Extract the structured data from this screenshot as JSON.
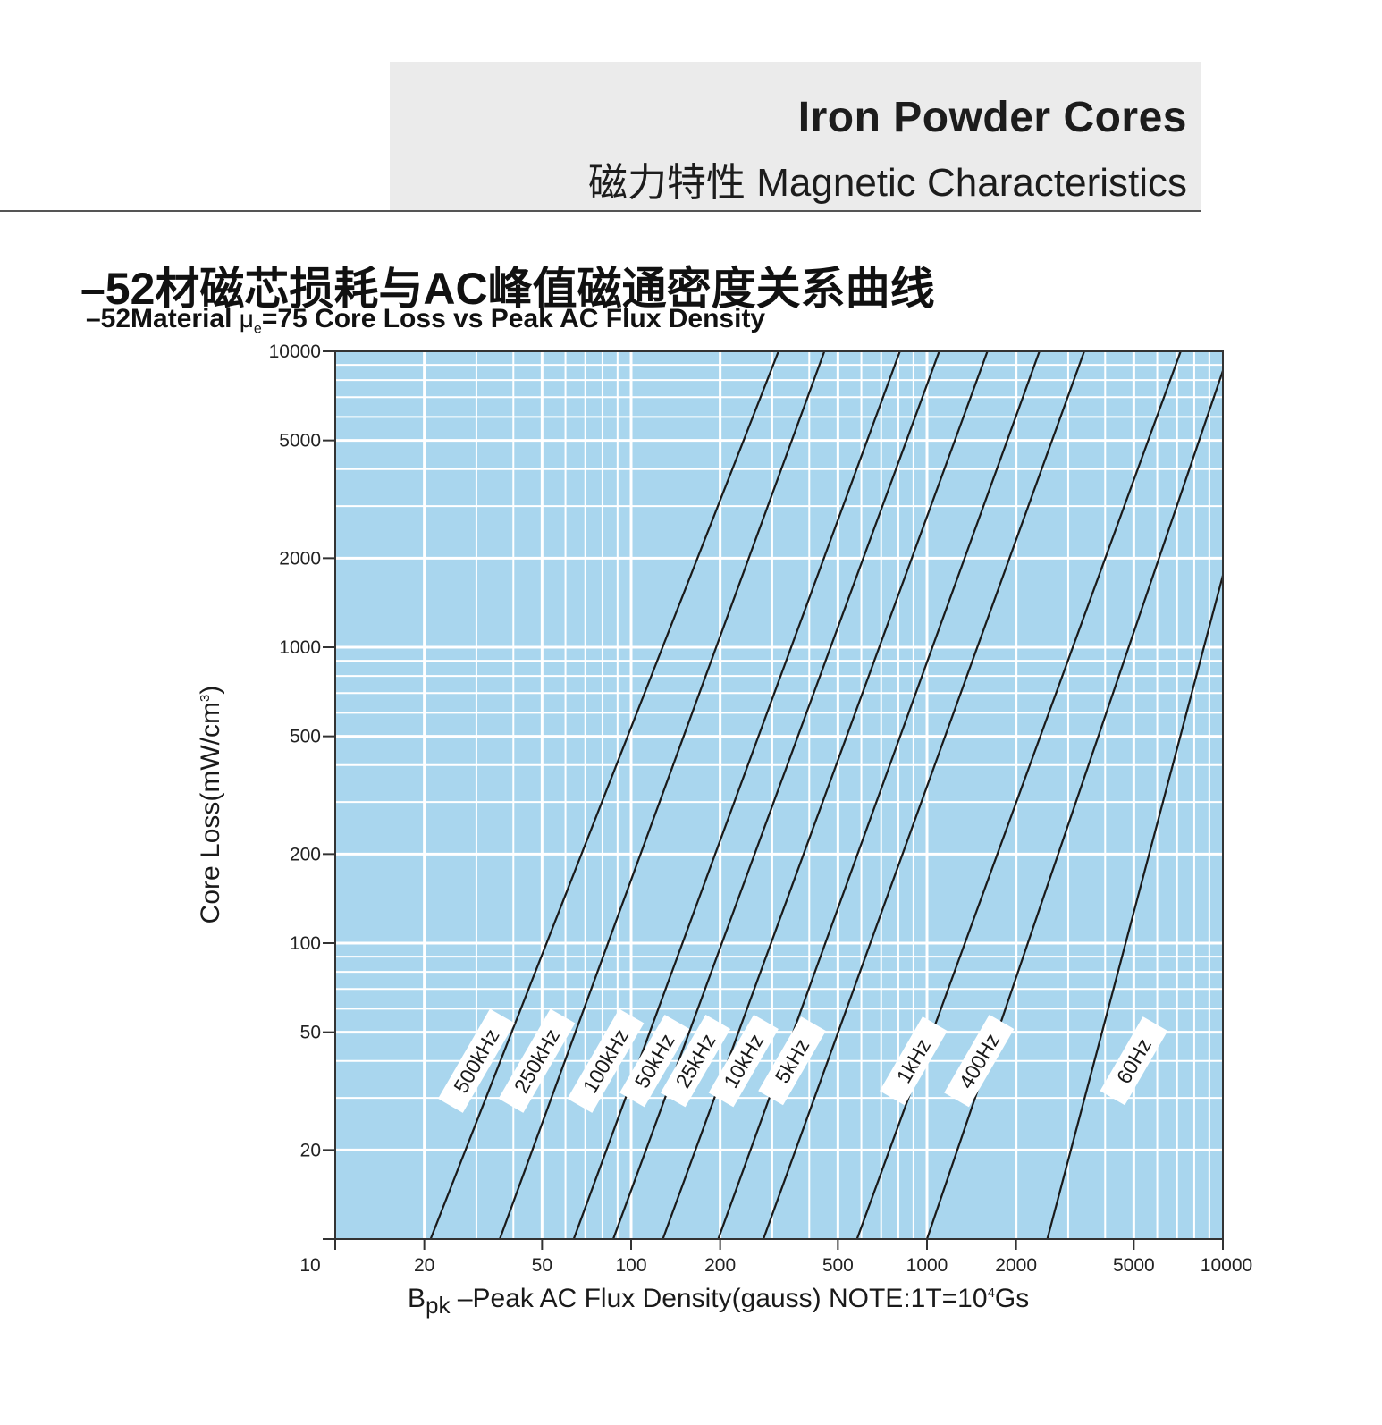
{
  "header": {
    "brand_title": "Iron Powder Cores",
    "brand_subtitle": "磁力特性 Magnetic Characteristics"
  },
  "chart_data": {
    "type": "line",
    "title_cn": "–52材磁芯损耗与AC峰值磁通密度关系曲线",
    "title_en_prefix": "–52Material",
    "title_en_mu": "μ",
    "title_en_mu_sub": "e",
    "title_en_suffix": "=75 Core Loss vs Peak AC Flux Density",
    "x_scale": "log",
    "y_scale": "log",
    "xlim": [
      10,
      10000
    ],
    "ylim": [
      10,
      10000
    ],
    "x_ticks": [
      "10",
      "20",
      "50",
      "100",
      "200",
      "500",
      "1000",
      "2000",
      "5000",
      "10000"
    ],
    "y_ticks": [
      "10000",
      "5000",
      "2000",
      "1000",
      "500",
      "200",
      "100",
      "50",
      "20"
    ],
    "xlabel": {
      "b": "B",
      "sub": "pk",
      "text": " –Peak AC Flux Density(gauss)  NOTE:1T=10",
      "sup": "4",
      "end": "Gs"
    },
    "ylabel": {
      "text": "Core Loss(mW/cm",
      "sup": "3",
      "end": ")"
    },
    "grid": true,
    "background_color": "#a9d6ee",
    "grid_color": "#ffffff",
    "line_color": "#1a1a1a",
    "series": [
      {
        "name": "500kHz",
        "points": [
          [
            21,
            10
          ],
          [
            315,
            10000
          ]
        ]
      },
      {
        "name": "250kHz",
        "points": [
          [
            36,
            10
          ],
          [
            450,
            10000
          ]
        ]
      },
      {
        "name": "100kHz",
        "points": [
          [
            64,
            10
          ],
          [
            810,
            10000
          ]
        ]
      },
      {
        "name": "50kHz",
        "points": [
          [
            87,
            10
          ],
          [
            1100,
            10000
          ]
        ]
      },
      {
        "name": "25kHz",
        "points": [
          [
            128,
            10
          ],
          [
            1600,
            10000
          ]
        ]
      },
      {
        "name": "10kHz",
        "points": [
          [
            197,
            10
          ],
          [
            2400,
            10000
          ]
        ]
      },
      {
        "name": "5kHz",
        "points": [
          [
            280,
            10
          ],
          [
            3400,
            10000
          ]
        ]
      },
      {
        "name": "1kHz",
        "points": [
          [
            580,
            10
          ],
          [
            7200,
            10000
          ]
        ]
      },
      {
        "name": "400Hz",
        "points": [
          [
            1000,
            10
          ],
          [
            10000,
            8600
          ]
        ]
      },
      {
        "name": "60Hz",
        "points": [
          [
            2550,
            10
          ],
          [
            10000,
            1750
          ]
        ]
      }
    ],
    "series_labels": [
      {
        "name": "500kHz",
        "x": 30,
        "y": 40
      },
      {
        "name": "250kHz",
        "x": 48,
        "y": 40
      },
      {
        "name": "100kHz",
        "x": 82,
        "y": 40
      },
      {
        "name": "50kHz",
        "x": 120,
        "y": 40
      },
      {
        "name": "25kHz",
        "x": 165,
        "y": 40
      },
      {
        "name": "10kHz",
        "x": 240,
        "y": 40
      },
      {
        "name": "5kHz",
        "x": 350,
        "y": 40
      },
      {
        "name": "1kHz",
        "x": 900,
        "y": 40
      },
      {
        "name": "400Hz",
        "x": 1500,
        "y": 40
      },
      {
        "name": "60Hz",
        "x": 5000,
        "y": 40
      }
    ]
  }
}
